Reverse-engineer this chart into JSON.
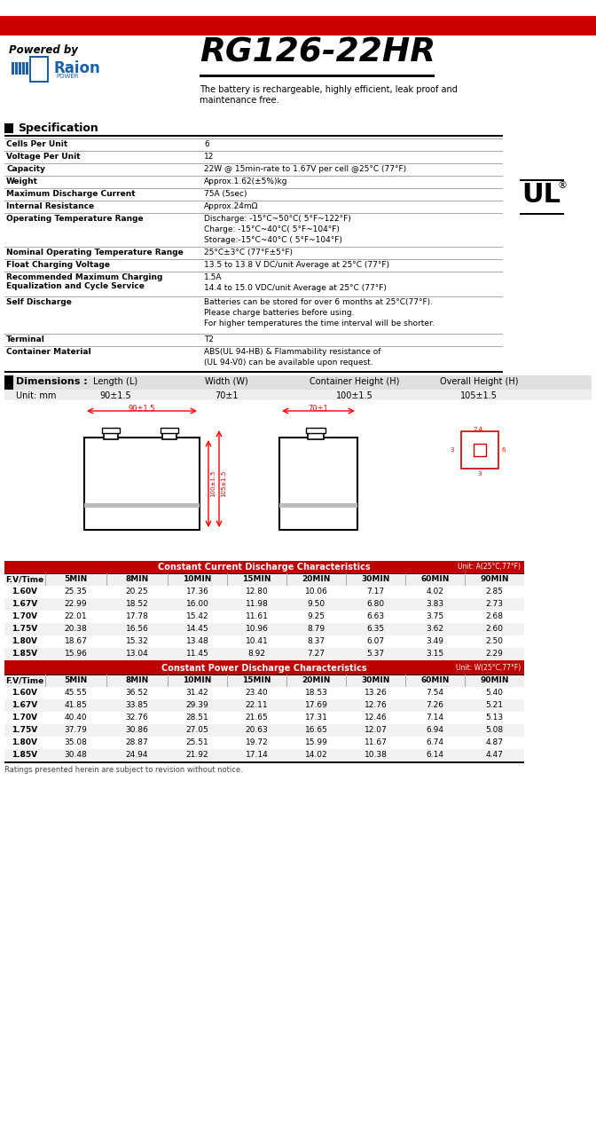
{
  "title": "RG126-22HR",
  "powered_by": "Powered by",
  "subtitle": "The battery is rechargeable, highly efficient, leak proof and\nmaintenance free.",
  "spec_title": "Specification",
  "red_bar_color": "#cc0000",
  "header_bg": "#ffffff",
  "spec_rows": [
    [
      "Cells Per Unit",
      "6"
    ],
    [
      "Voltage Per Unit",
      "12"
    ],
    [
      "Capacity",
      "22W @ 15min-rate to 1.67V per cell @25°C (77°F)"
    ],
    [
      "Weight",
      "Approx.1.62(±5%)kg"
    ],
    [
      "Maximum Discharge Current",
      "75A (5sec)"
    ],
    [
      "Internal Resistance",
      "Approx.24mΩ"
    ],
    [
      "Operating Temperature Range",
      "Discharge: -15°C~50°C( 5°F~122°F)\nCharge: -15°C~40°C( 5°F~104°F)\nStorage:-15°C~40°C ( 5°F~104°F)"
    ],
    [
      "Nominal Operating Temperature Range",
      "25°C±3°C (77°F±5°F)"
    ],
    [
      "Float Charging Voltage",
      "13.5 to 13.8 V DC/unit Average at 25°C (77°F)"
    ],
    [
      "Recommended Maximum Charging\nEqualization and Cycle Service",
      "1.5A\n14.4 to 15.0 VDC/unit Average at 25°C (77°F)"
    ],
    [
      "Self Discharge",
      "Batteries can be stored for over 6 months at 25°C(77°F).\nPlease charge batteries before using.\nFor higher temperatures the time interval will be shorter."
    ],
    [
      "Terminal",
      "T2"
    ],
    [
      "Container Material",
      "ABS(UL 94-HB) & Flammability resistance of\n(UL 94-V0) can be available upon request."
    ]
  ],
  "dim_title": "Dimensions :",
  "dim_headers": [
    "Length (L)",
    "Width (W)",
    "Container Height (H)",
    "Overall Height (H)"
  ],
  "dim_unit": "Unit: mm",
  "dim_values": [
    "90±1.5",
    "70±1",
    "100±1.5",
    "105±1.5"
  ],
  "dim_bg": "#e0e0e0",
  "cc_title": "Constant Current Discharge Characteristics",
  "cc_unit": "Unit: A(25°C,77°F)",
  "cp_title": "Constant Power Discharge Characteristics",
  "cp_unit": "Unit: W(25°C,77°F)",
  "table_headers": [
    "F.V/Time",
    "5MIN",
    "8MIN",
    "10MIN",
    "15MIN",
    "20MIN",
    "30MIN",
    "60MIN",
    "90MIN"
  ],
  "cc_data": [
    [
      "1.60V",
      "25.35",
      "20.25",
      "17.36",
      "12.80",
      "10.06",
      "7.17",
      "4.02",
      "2.85"
    ],
    [
      "1.67V",
      "22.99",
      "18.52",
      "16.00",
      "11.98",
      "9.50",
      "6.80",
      "3.83",
      "2.73"
    ],
    [
      "1.70V",
      "22.01",
      "17.78",
      "15.42",
      "11.61",
      "9.25",
      "6.63",
      "3.75",
      "2.68"
    ],
    [
      "1.75V",
      "20.38",
      "16.56",
      "14.45",
      "10.96",
      "8.79",
      "6.35",
      "3.62",
      "2.60"
    ],
    [
      "1.80V",
      "18.67",
      "15.32",
      "13.48",
      "10.41",
      "8.37",
      "6.07",
      "3.49",
      "2.50"
    ],
    [
      "1.85V",
      "15.96",
      "13.04",
      "11.45",
      "8.92",
      "7.27",
      "5.37",
      "3.15",
      "2.29"
    ]
  ],
  "cp_data": [
    [
      "1.60V",
      "45.55",
      "36.52",
      "31.42",
      "23.40",
      "18.53",
      "13.26",
      "7.54",
      "5.40"
    ],
    [
      "1.67V",
      "41.85",
      "33.85",
      "29.39",
      "22.11",
      "17.69",
      "12.76",
      "7.26",
      "5.21"
    ],
    [
      "1.70V",
      "40.40",
      "32.76",
      "28.51",
      "21.65",
      "17.31",
      "12.46",
      "7.14",
      "5.13"
    ],
    [
      "1.75V",
      "37.79",
      "30.86",
      "27.05",
      "20.63",
      "16.65",
      "12.07",
      "6.94",
      "5.08"
    ],
    [
      "1.80V",
      "35.08",
      "28.87",
      "25.51",
      "19.72",
      "15.99",
      "11.67",
      "6.74",
      "4.87"
    ],
    [
      "1.85V",
      "30.48",
      "24.94",
      "21.92",
      "17.14",
      "14.02",
      "10.38",
      "6.14",
      "4.47"
    ]
  ],
  "footer": "Ratings presented herein are subject to revision without notice.",
  "table_header_bg": "#c00000",
  "table_header_fg": "#ffffff",
  "table_row_even": "#ffffff",
  "table_row_odd": "#f2f2f2",
  "blue_color": "#1a5fa8",
  "black": "#000000"
}
